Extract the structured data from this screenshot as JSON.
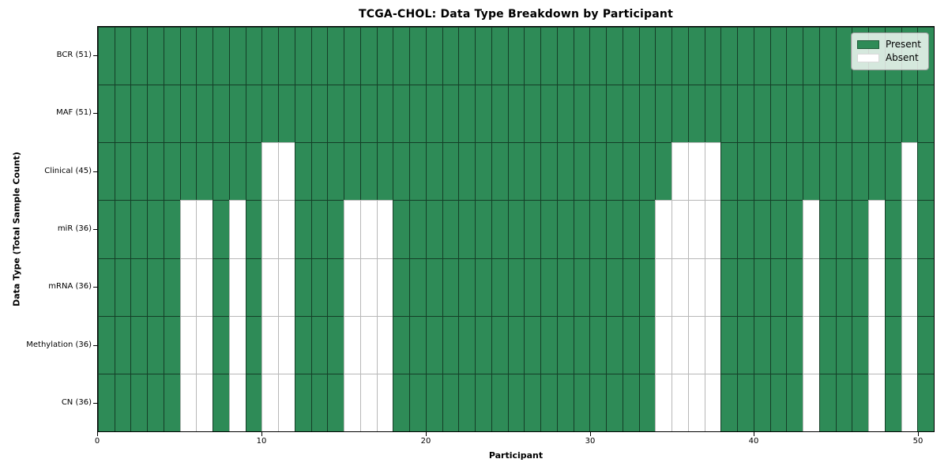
{
  "chart_data": {
    "type": "heatmap",
    "title": "TCGA-CHOL: Data Type Breakdown by Participant",
    "xlabel": "Participant",
    "ylabel": "Data Type (Total Sample Count)",
    "n_participants": 51,
    "x_ticks": [
      0,
      10,
      20,
      30,
      40,
      50
    ],
    "xlim": [
      0,
      51
    ],
    "grid": "cell-borders",
    "legend_position": "upper-right-inside",
    "colors": {
      "present": "#2e8b57",
      "absent": "#ffffff",
      "cell_border": "#1c3326",
      "frame": "#000000"
    },
    "legend": [
      {
        "label": "Present",
        "color": "#2e8b57"
      },
      {
        "label": "Absent",
        "color": "#ffffff"
      }
    ],
    "rows": [
      {
        "label": "BCR (51)",
        "present_count": 51,
        "absent_participants": []
      },
      {
        "label": "MAF (51)",
        "present_count": 51,
        "absent_participants": []
      },
      {
        "label": "Clinical (45)",
        "present_count": 45,
        "absent_participants": [
          10,
          11,
          35,
          36,
          37,
          49
        ]
      },
      {
        "label": "miR (36)",
        "present_count": 36,
        "absent_participants": [
          5,
          6,
          8,
          10,
          11,
          15,
          16,
          17,
          34,
          35,
          36,
          37,
          43,
          47,
          49
        ]
      },
      {
        "label": "mRNA (36)",
        "present_count": 36,
        "absent_participants": [
          5,
          6,
          8,
          10,
          11,
          15,
          16,
          17,
          34,
          35,
          36,
          37,
          43,
          47,
          49
        ]
      },
      {
        "label": "Methylation (36)",
        "present_count": 36,
        "absent_participants": [
          5,
          6,
          8,
          10,
          11,
          15,
          16,
          17,
          34,
          35,
          36,
          37,
          43,
          47,
          49
        ]
      },
      {
        "label": "CN (36)",
        "present_count": 36,
        "absent_participants": [
          5,
          6,
          8,
          10,
          11,
          15,
          16,
          17,
          34,
          35,
          36,
          37,
          43,
          47,
          49
        ]
      }
    ]
  }
}
